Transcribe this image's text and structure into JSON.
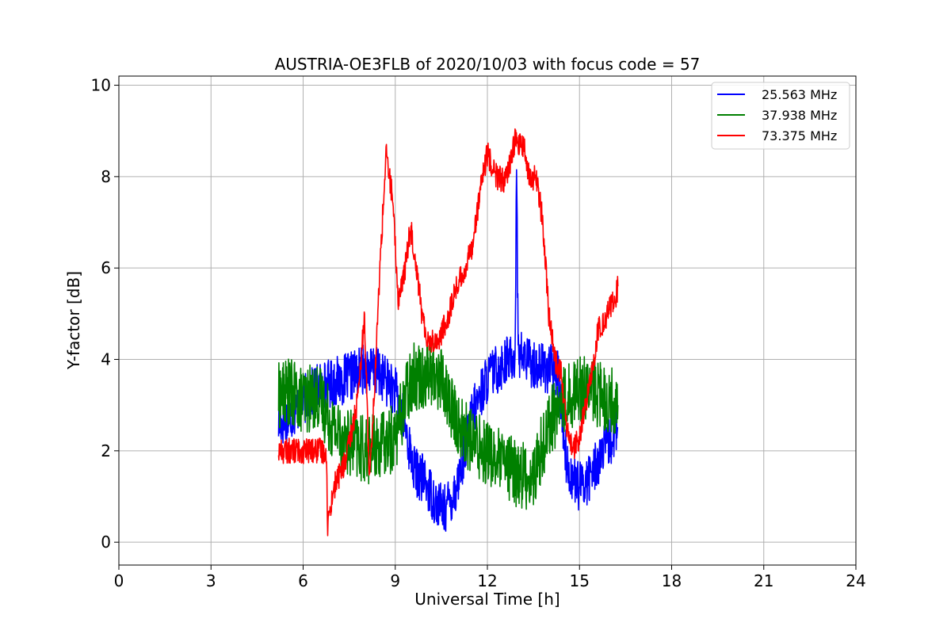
{
  "chart_data": {
    "type": "line",
    "title": "AUSTRIA-OE3FLB of 2020/10/03 with focus code = 57",
    "xlabel": "Universal Time [h]",
    "ylabel": "Y-factor [dB]",
    "xlim": [
      0,
      24
    ],
    "ylim": [
      -0.5,
      10.2
    ],
    "x_ticks": [
      "0",
      "3",
      "6",
      "9",
      "12",
      "15",
      "18",
      "21",
      "24"
    ],
    "y_ticks": [
      "0",
      "2",
      "4",
      "6",
      "8",
      "10"
    ],
    "grid": true,
    "legend_position": "top-right",
    "series": [
      {
        "name": "25.563 MHz",
        "color": "#0000ff",
        "x": [
          5.2,
          5.5,
          6.0,
          6.5,
          7.0,
          7.5,
          8.0,
          8.5,
          9.0,
          9.3,
          9.6,
          10.0,
          10.3,
          10.6,
          11.0,
          11.5,
          12.0,
          12.5,
          12.9,
          12.95,
          13.0,
          13.05,
          13.5,
          14.0,
          14.3,
          14.6,
          15.0,
          15.3,
          15.6,
          16.0,
          16.25
        ],
        "y": [
          2.6,
          2.7,
          3.1,
          3.4,
          3.5,
          3.6,
          3.8,
          3.7,
          3.3,
          2.6,
          1.6,
          1.3,
          0.9,
          0.7,
          1.2,
          2.8,
          3.6,
          3.9,
          4.1,
          8.15,
          4.3,
          4.1,
          3.9,
          3.8,
          3.7,
          1.6,
          1.2,
          1.4,
          1.8,
          2.2,
          2.5
        ]
      },
      {
        "name": "37.938 MHz",
        "color": "#008000",
        "x": [
          5.2,
          5.5,
          6.0,
          6.5,
          7.0,
          7.5,
          8.0,
          8.5,
          9.0,
          9.5,
          10.0,
          10.5,
          11.0,
          11.5,
          12.0,
          12.5,
          13.0,
          13.5,
          14.0,
          14.5,
          15.0,
          15.5,
          16.0,
          16.25
        ],
        "y": [
          3.2,
          3.3,
          3.1,
          3.2,
          2.5,
          2.2,
          2.0,
          2.1,
          2.3,
          3.6,
          3.7,
          3.6,
          2.6,
          2.2,
          2.0,
          1.7,
          1.5,
          1.4,
          2.6,
          3.1,
          3.4,
          3.3,
          3.1,
          3.0
        ]
      },
      {
        "name": "73.375 MHz",
        "color": "#ff0000",
        "x": [
          5.2,
          5.5,
          6.0,
          6.5,
          6.75,
          6.8,
          7.0,
          7.4,
          7.8,
          8.0,
          8.15,
          8.3,
          8.5,
          8.7,
          8.9,
          9.1,
          9.3,
          9.5,
          9.7,
          9.9,
          10.1,
          10.4,
          10.7,
          11.0,
          11.3,
          11.5,
          11.8,
          12.0,
          12.3,
          12.6,
          12.9,
          13.2,
          13.4,
          13.6,
          13.8,
          14.0,
          14.2,
          14.4,
          14.6,
          14.8,
          15.0,
          15.3,
          15.6,
          15.9,
          16.2,
          16.25
        ],
        "y": [
          2.0,
          2.0,
          2.0,
          2.0,
          2.0,
          0.4,
          1.2,
          1.8,
          3.2,
          5.0,
          1.5,
          3.0,
          6.0,
          8.5,
          7.6,
          5.3,
          5.9,
          6.9,
          6.0,
          4.8,
          4.4,
          4.4,
          4.9,
          5.6,
          6.0,
          6.5,
          7.8,
          8.5,
          8.0,
          7.9,
          8.8,
          8.6,
          7.9,
          8.0,
          7.0,
          5.0,
          4.0,
          3.7,
          2.4,
          2.0,
          2.3,
          3.3,
          4.6,
          5.0,
          5.4,
          5.6
        ]
      }
    ]
  }
}
